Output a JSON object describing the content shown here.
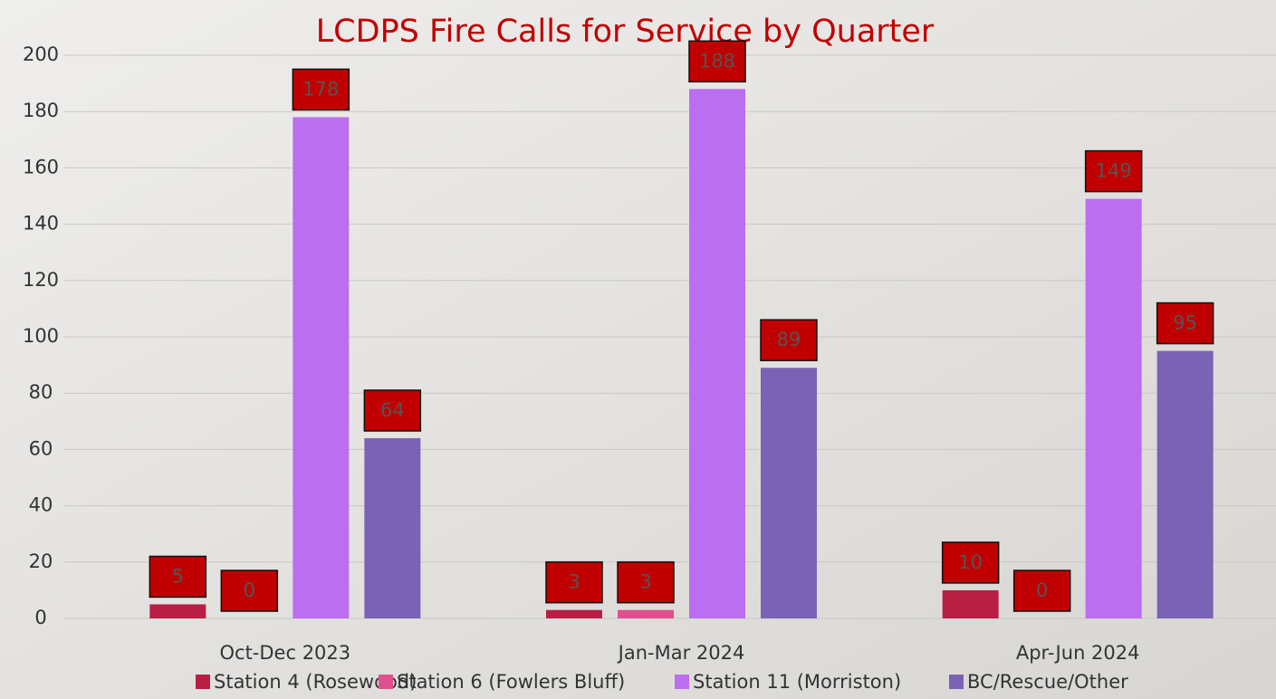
{
  "chart_data": {
    "type": "bar",
    "title": "LCDPS Fire Calls for Service by Quarter",
    "categories": [
      "Oct-Dec 2023",
      "Jan-Mar 2024",
      "Apr-Jun 2024"
    ],
    "series": [
      {
        "name": "Station 4 (Rosewood)",
        "color": "#b91f45",
        "values": [
          5,
          3,
          10
        ]
      },
      {
        "name": "Station 6 (Fowlers Bluff)",
        "color": "#e04f8e",
        "values": [
          0,
          3,
          0
        ]
      },
      {
        "name": "Station 11 (Morriston)",
        "color": "#bb6ef0",
        "values": [
          178,
          188,
          149
        ]
      },
      {
        "name": "BC/Rescue/Other",
        "color": "#7a62b4",
        "values": [
          64,
          89,
          95
        ]
      }
    ],
    "ylim": [
      0,
      200
    ],
    "yticks": [
      0,
      20,
      40,
      60,
      80,
      100,
      120,
      140,
      160,
      180,
      200
    ],
    "grid": true,
    "legend": "bottom"
  }
}
